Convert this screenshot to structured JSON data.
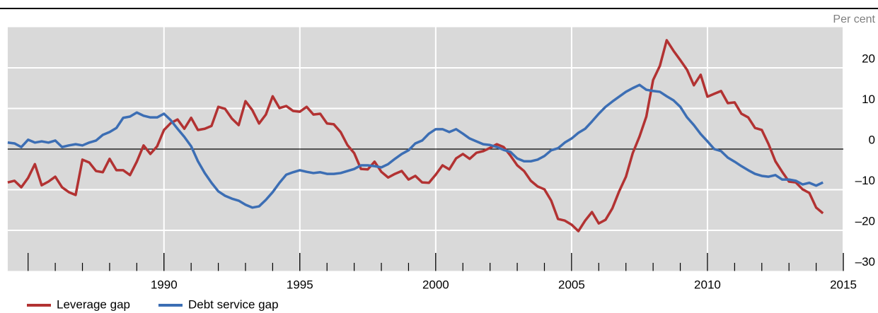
{
  "chart_data": {
    "type": "line",
    "y_unit_label": "Per cent",
    "x": [
      1984.25,
      1984.5,
      1984.75,
      1985,
      1985.25,
      1985.5,
      1985.75,
      1986,
      1986.25,
      1986.5,
      1986.75,
      1987,
      1987.25,
      1987.5,
      1987.75,
      1988,
      1988.25,
      1988.5,
      1988.75,
      1989,
      1989.25,
      1989.5,
      1989.75,
      1990,
      1990.25,
      1990.5,
      1990.75,
      1991,
      1991.25,
      1991.5,
      1991.75,
      1992,
      1992.25,
      1992.5,
      1992.75,
      1993,
      1993.25,
      1993.5,
      1993.75,
      1994,
      1994.25,
      1994.5,
      1994.75,
      1995,
      1995.25,
      1995.5,
      1995.75,
      1996,
      1996.25,
      1996.5,
      1996.75,
      1997,
      1997.25,
      1997.5,
      1997.75,
      1998,
      1998.25,
      1998.5,
      1998.75,
      1999,
      1999.25,
      1999.5,
      1999.75,
      2000,
      2000.25,
      2000.5,
      2000.75,
      2001,
      2001.25,
      2001.5,
      2001.75,
      2002,
      2002.25,
      2002.5,
      2002.75,
      2003,
      2003.25,
      2003.5,
      2003.75,
      2004,
      2004.25,
      2004.5,
      2004.75,
      2005,
      2005.25,
      2005.5,
      2005.75,
      2006,
      2006.25,
      2006.5,
      2006.75,
      2007,
      2007.25,
      2007.5,
      2007.75,
      2008,
      2008.25,
      2008.5,
      2008.75,
      2009,
      2009.25,
      2009.5,
      2009.75,
      2010,
      2010.25,
      2010.5,
      2010.75,
      2011,
      2011.25,
      2011.5,
      2011.75,
      2012,
      2012.25,
      2012.5,
      2012.75,
      2013,
      2013.25,
      2013.5,
      2013.75,
      2014,
      2014.25
    ],
    "series": [
      {
        "name": "Leverage gap",
        "color": "#b23232",
        "values": [
          -8.2,
          -7.8,
          -9.4,
          -7.1,
          -3.7,
          -8.9,
          -8.0,
          -6.8,
          -9.4,
          -10.6,
          -11.3,
          -2.6,
          -3.3,
          -5.4,
          -5.7,
          -2.4,
          -5.2,
          -5.2,
          -6.4,
          -3.1,
          0.9,
          -1.2,
          0.7,
          4.7,
          6.4,
          7.3,
          5.0,
          7.7,
          4.7,
          5.0,
          5.7,
          10.4,
          9.9,
          7.5,
          5.9,
          11.8,
          9.6,
          6.3,
          8.5,
          13.0,
          10.1,
          10.6,
          9.4,
          9.2,
          10.4,
          8.5,
          8.7,
          6.3,
          6.1,
          4.2,
          1.0,
          -1.0,
          -4.9,
          -5.0,
          -3.1,
          -5.6,
          -7.0,
          -6.1,
          -5.4,
          -7.5,
          -6.6,
          -8.2,
          -8.3,
          -6.3,
          -4.0,
          -5.0,
          -2.3,
          -1.2,
          -2.4,
          -0.9,
          -0.5,
          0.3,
          1.2,
          0.5,
          -1.6,
          -4.0,
          -5.4,
          -7.8,
          -9.2,
          -9.9,
          -12.7,
          -17.2,
          -17.6,
          -18.6,
          -20.2,
          -17.6,
          -15.5,
          -18.3,
          -17.4,
          -14.6,
          -10.4,
          -6.8,
          -1.0,
          3.1,
          8.0,
          17.0,
          20.5,
          26.8,
          24.2,
          21.9,
          19.5,
          15.7,
          18.3,
          12.9,
          13.6,
          14.3,
          11.3,
          11.5,
          8.7,
          7.8,
          5.2,
          4.7,
          1.2,
          -3.0,
          -5.6,
          -8.0,
          -8.2,
          -9.9,
          -10.8,
          -14.4,
          -15.8
        ]
      },
      {
        "name": "Debt service gap",
        "color": "#3c6eb4",
        "values": [
          1.6,
          1.4,
          0.5,
          2.3,
          1.6,
          1.9,
          1.6,
          2.1,
          0.5,
          0.9,
          1.2,
          0.9,
          1.6,
          2.1,
          3.5,
          4.2,
          5.2,
          7.7,
          8.0,
          9.0,
          8.2,
          7.8,
          7.8,
          8.7,
          7.1,
          5.0,
          3.0,
          0.7,
          -3.0,
          -5.9,
          -8.3,
          -10.4,
          -11.5,
          -12.2,
          -12.7,
          -13.7,
          -14.4,
          -14.1,
          -12.5,
          -10.6,
          -8.3,
          -6.3,
          -5.7,
          -5.2,
          -5.6,
          -5.9,
          -5.7,
          -6.1,
          -6.1,
          -5.9,
          -5.4,
          -4.9,
          -4.0,
          -4.0,
          -4.2,
          -4.5,
          -3.7,
          -2.4,
          -1.2,
          -0.3,
          1.4,
          2.1,
          3.8,
          4.9,
          4.9,
          4.2,
          4.9,
          3.8,
          2.6,
          1.9,
          1.2,
          1.0,
          0.5,
          -0.2,
          -0.7,
          -2.3,
          -3.0,
          -3.0,
          -2.6,
          -1.7,
          -0.3,
          0.2,
          1.6,
          2.6,
          4.0,
          5.0,
          6.8,
          8.7,
          10.4,
          11.7,
          12.9,
          14.1,
          15.0,
          15.8,
          14.6,
          14.3,
          14.1,
          13.0,
          12.0,
          10.4,
          7.8,
          5.9,
          3.7,
          1.9,
          0.0,
          -0.5,
          -2.1,
          -3.1,
          -4.2,
          -5.2,
          -6.1,
          -6.6,
          -6.8,
          -6.4,
          -7.5,
          -7.5,
          -7.8,
          -8.7,
          -8.3,
          -9.0,
          -8.2
        ]
      }
    ],
    "xlim": [
      1984.25,
      2015
    ],
    "xticks": [
      1990,
      1995,
      2000,
      2005,
      2010,
      2015
    ],
    "ylim": [
      -30,
      30
    ],
    "yticks": [
      {
        "value": -30,
        "label": "–30"
      },
      {
        "value": -20,
        "label": "–20"
      },
      {
        "value": -10,
        "label": "–10"
      },
      0,
      10,
      20
    ],
    "grid": true,
    "background": "#d9d9d9"
  }
}
